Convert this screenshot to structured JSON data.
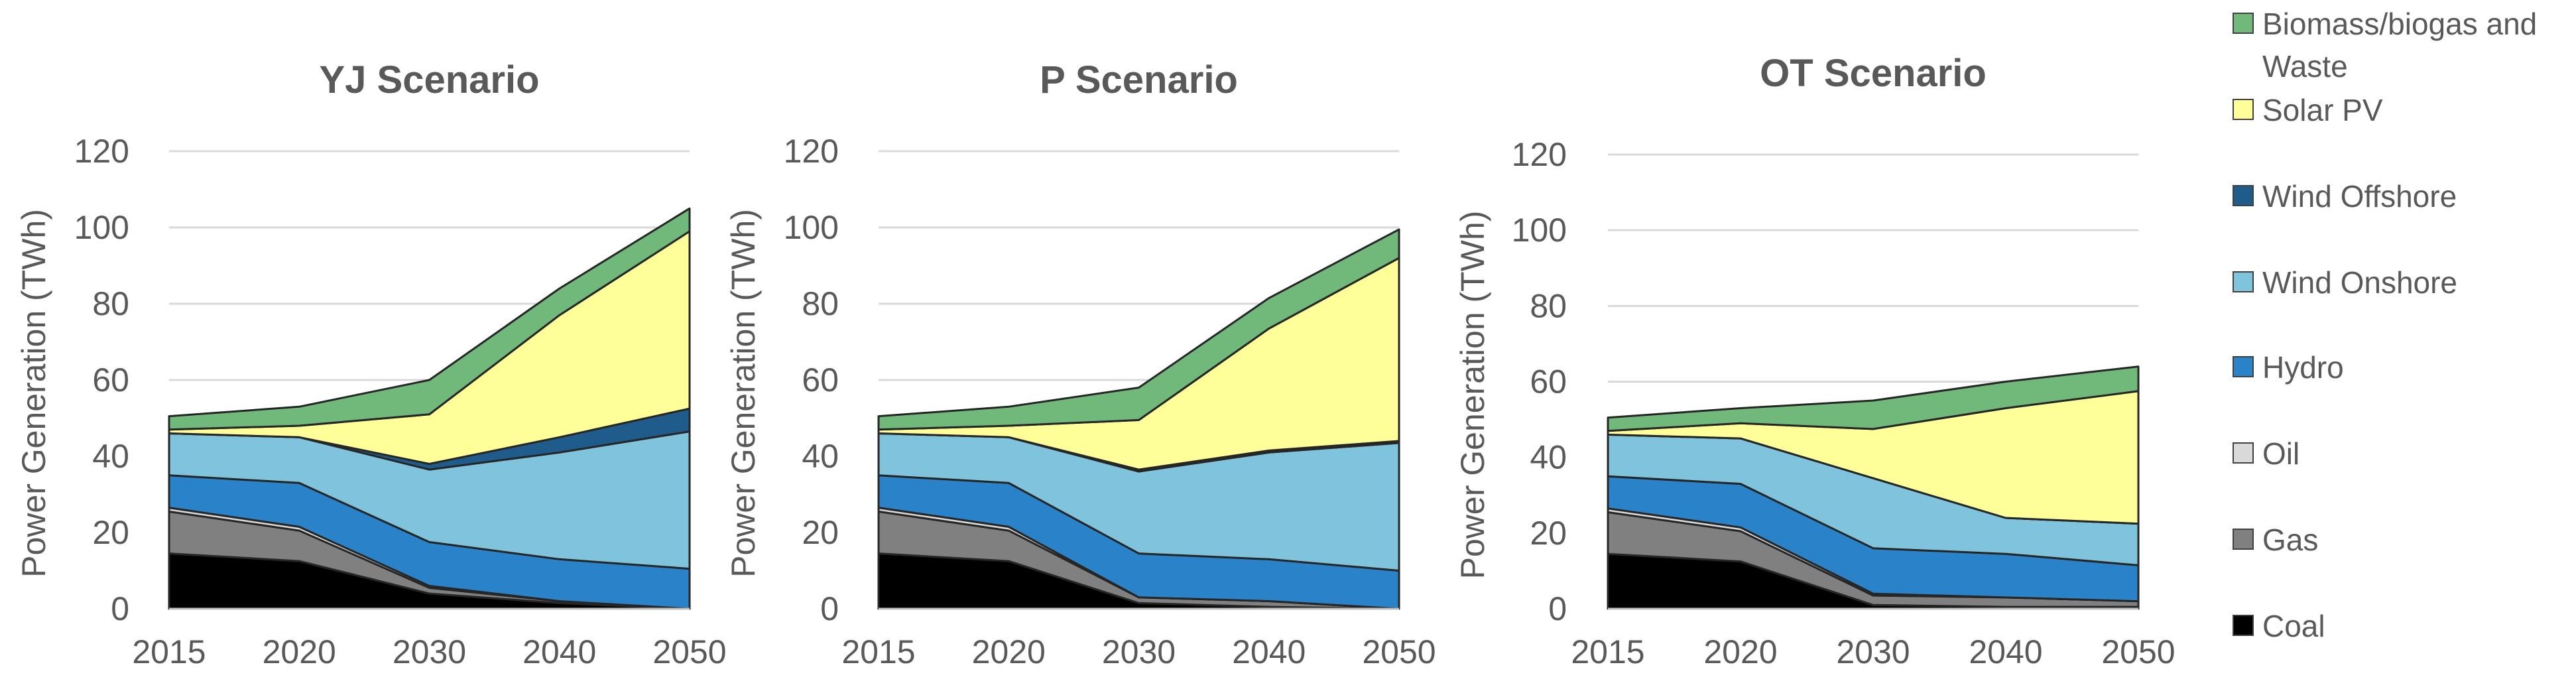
{
  "chart_data": [
    {
      "type": "area",
      "stacked": true,
      "title": "YJ Scenario",
      "ylabel": "Power Generation (TWh)",
      "xlabel": "",
      "categories": [
        "2015",
        "2020",
        "2030",
        "2040",
        "2050"
      ],
      "ylim": [
        0,
        120
      ],
      "yticks": [
        0,
        20,
        40,
        60,
        80,
        100,
        120
      ],
      "grid": true,
      "series": [
        {
          "name": "Coal",
          "values": [
            14.5,
            12.5,
            4.0,
            1.5,
            0.0
          ]
        },
        {
          "name": "Gas",
          "values": [
            11.0,
            8.0,
            1.5,
            0.5,
            0.0
          ]
        },
        {
          "name": "Oil",
          "values": [
            1.0,
            1.0,
            0.5,
            0.0,
            0.0
          ]
        },
        {
          "name": "Hydro",
          "values": [
            8.5,
            11.5,
            11.5,
            11.0,
            10.5
          ]
        },
        {
          "name": "Wind Onshore",
          "values": [
            11.0,
            12.0,
            19.0,
            28.0,
            36.0
          ]
        },
        {
          "name": "Wind Offshore",
          "values": [
            0.0,
            0.0,
            1.5,
            4.0,
            6.0
          ]
        },
        {
          "name": "Solar PV",
          "values": [
            1.0,
            3.0,
            13.0,
            32.0,
            46.5
          ]
        },
        {
          "name": "Biomass/biogas and Waste",
          "values": [
            3.5,
            5.0,
            9.0,
            7.0,
            6.0
          ]
        }
      ]
    },
    {
      "type": "area",
      "stacked": true,
      "title": "P Scenario",
      "ylabel": "Power Generation (TWh)",
      "xlabel": "",
      "categories": [
        "2015",
        "2020",
        "2030",
        "2040",
        "2050"
      ],
      "ylim": [
        0,
        120
      ],
      "yticks": [
        0,
        20,
        40,
        60,
        80,
        100,
        120
      ],
      "grid": true,
      "series": [
        {
          "name": "Coal",
          "values": [
            14.5,
            12.5,
            1.5,
            0.5,
            0.0
          ]
        },
        {
          "name": "Gas",
          "values": [
            11.0,
            8.0,
            1.5,
            1.5,
            0.0
          ]
        },
        {
          "name": "Oil",
          "values": [
            1.0,
            1.0,
            0.0,
            0.0,
            0.0
          ]
        },
        {
          "name": "Hydro",
          "values": [
            8.5,
            11.5,
            11.5,
            11.0,
            10.0
          ]
        },
        {
          "name": "Wind Onshore",
          "values": [
            11.0,
            12.0,
            21.5,
            28.0,
            33.5
          ]
        },
        {
          "name": "Wind Offshore",
          "values": [
            0.0,
            0.0,
            0.5,
            0.5,
            0.5
          ]
        },
        {
          "name": "Solar PV",
          "values": [
            1.0,
            3.0,
            13.0,
            32.0,
            48.0
          ]
        },
        {
          "name": "Biomass/biogas and Waste",
          "values": [
            3.5,
            5.0,
            8.5,
            8.0,
            7.5
          ]
        }
      ]
    },
    {
      "type": "area",
      "stacked": true,
      "title": "OT Scenario",
      "ylabel": "Power Generation (TWh)",
      "xlabel": "",
      "categories": [
        "2015",
        "2020",
        "2030",
        "2040",
        "2050"
      ],
      "ylim": [
        0,
        120
      ],
      "yticks": [
        0,
        20,
        40,
        60,
        80,
        100,
        120
      ],
      "grid": true,
      "series": [
        {
          "name": "Coal",
          "values": [
            14.5,
            12.5,
            1.0,
            0.5,
            0.5
          ]
        },
        {
          "name": "Gas",
          "values": [
            11.0,
            8.0,
            2.5,
            2.5,
            1.5
          ]
        },
        {
          "name": "Oil",
          "values": [
            1.0,
            1.0,
            0.5,
            0.0,
            0.0
          ]
        },
        {
          "name": "Hydro",
          "values": [
            8.5,
            11.5,
            12.0,
            11.5,
            9.5
          ]
        },
        {
          "name": "Wind Onshore",
          "values": [
            11.0,
            12.0,
            18.5,
            9.5,
            11.0
          ]
        },
        {
          "name": "Wind Offshore",
          "values": [
            0.0,
            0.0,
            0.0,
            0.0,
            0.0
          ]
        },
        {
          "name": "Solar PV",
          "values": [
            1.0,
            4.0,
            13.0,
            29.0,
            35.0
          ]
        },
        {
          "name": "Biomass/biogas and Waste",
          "values": [
            3.5,
            4.0,
            7.5,
            7.0,
            6.5
          ]
        }
      ]
    }
  ],
  "legend": {
    "placement": "right",
    "entries": [
      {
        "label": "Biomass/biogas and Waste",
        "lines": [
          "Biomass/biogas and",
          "Waste"
        ],
        "color": "#70b97b"
      },
      {
        "label": "Solar PV",
        "lines": [
          "Solar PV"
        ],
        "color": "#ffff99"
      },
      {
        "label": "Wind Offshore",
        "lines": [
          "Wind Offshore"
        ],
        "color": "#1f5c8c"
      },
      {
        "label": "Wind Onshore",
        "lines": [
          "Wind Onshore"
        ],
        "color": "#7fc3dd"
      },
      {
        "label": "Hydro",
        "lines": [
          "Hydro"
        ],
        "color": "#2a83c9"
      },
      {
        "label": "Oil",
        "lines": [
          "Oil"
        ],
        "color": "#d9d9d9"
      },
      {
        "label": "Gas",
        "lines": [
          "Gas"
        ],
        "color": "#808080"
      },
      {
        "label": "Coal",
        "lines": [
          "Coal"
        ],
        "color": "#000000"
      }
    ]
  },
  "colors": {
    "Coal": "#000000",
    "Gas": "#808080",
    "Oil": "#d9d9d9",
    "Hydro": "#2a83c9",
    "Wind Onshore": "#7fc3dd",
    "Wind Offshore": "#1f5c8c",
    "Solar PV": "#ffff99",
    "Biomass/biogas and Waste": "#70b97b",
    "text": "#595959",
    "grid": "#d9d9d9"
  }
}
